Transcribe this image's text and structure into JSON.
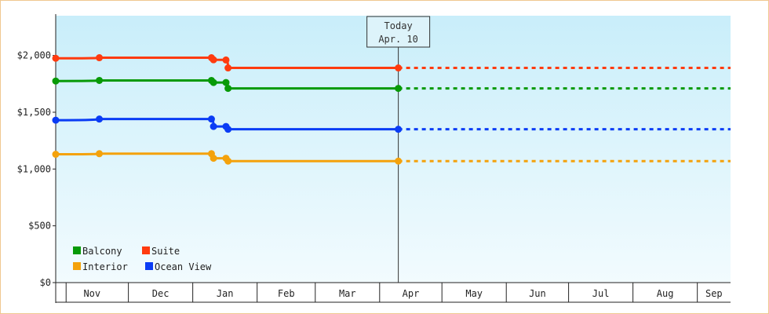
{
  "chart_data": {
    "type": "line",
    "title": "",
    "xlabel": "",
    "ylabel": "",
    "ylim": [
      0,
      2350
    ],
    "yticks": [
      {
        "value": 0,
        "label": "$0"
      },
      {
        "value": 500,
        "label": "$500"
      },
      {
        "value": 1000,
        "label": "$1,000"
      },
      {
        "value": 1500,
        "label": "$1,500"
      },
      {
        "value": 2000,
        "label": "$2,000"
      }
    ],
    "xlim": [
      "2024-10-27",
      "2025-09-17"
    ],
    "months": [
      {
        "label": "Nov",
        "start": "2024-11-01"
      },
      {
        "label": "Dec",
        "start": "2024-12-01"
      },
      {
        "label": "Jan",
        "start": "2025-01-01"
      },
      {
        "label": "Feb",
        "start": "2025-02-01"
      },
      {
        "label": "Mar",
        "start": "2025-03-01"
      },
      {
        "label": "Apr",
        "start": "2025-04-01"
      },
      {
        "label": "May",
        "start": "2025-05-01"
      },
      {
        "label": "Jun",
        "start": "2025-06-01"
      },
      {
        "label": "Jul",
        "start": "2025-07-01"
      },
      {
        "label": "Aug",
        "start": "2025-08-01"
      },
      {
        "label": "Sep",
        "start": "2025-09-01"
      }
    ],
    "today": {
      "date": "2025-04-10",
      "label_line1": "Today",
      "label_line2": "Apr. 10"
    },
    "grid": false,
    "legend_position": "bottom-left",
    "series": [
      {
        "name": "Suite",
        "color": "#ff3b0f",
        "points": [
          {
            "x": "2024-10-27",
            "y": 1975
          },
          {
            "x": "2024-11-17",
            "y": 1980
          },
          {
            "x": "2025-01-10",
            "y": 1980
          },
          {
            "x": "2025-01-11",
            "y": 1962
          },
          {
            "x": "2025-01-17",
            "y": 1960
          },
          {
            "x": "2025-01-18",
            "y": 1890
          },
          {
            "x": "2025-04-10",
            "y": 1890
          }
        ]
      },
      {
        "name": "Balcony",
        "color": "#079a07",
        "points": [
          {
            "x": "2024-10-27",
            "y": 1775
          },
          {
            "x": "2024-11-17",
            "y": 1780
          },
          {
            "x": "2025-01-10",
            "y": 1780
          },
          {
            "x": "2025-01-11",
            "y": 1762
          },
          {
            "x": "2025-01-17",
            "y": 1762
          },
          {
            "x": "2025-01-18",
            "y": 1710
          },
          {
            "x": "2025-04-10",
            "y": 1710
          }
        ]
      },
      {
        "name": "Ocean View",
        "color": "#0a3cf5",
        "points": [
          {
            "x": "2024-10-27",
            "y": 1430
          },
          {
            "x": "2024-11-17",
            "y": 1440
          },
          {
            "x": "2025-01-10",
            "y": 1440
          },
          {
            "x": "2025-01-11",
            "y": 1375
          },
          {
            "x": "2025-01-17",
            "y": 1375
          },
          {
            "x": "2025-01-18",
            "y": 1350
          },
          {
            "x": "2025-04-10",
            "y": 1350
          }
        ]
      },
      {
        "name": "Interior",
        "color": "#f4a20c",
        "points": [
          {
            "x": "2024-10-27",
            "y": 1130
          },
          {
            "x": "2024-11-17",
            "y": 1135
          },
          {
            "x": "2025-01-10",
            "y": 1135
          },
          {
            "x": "2025-01-11",
            "y": 1095
          },
          {
            "x": "2025-01-17",
            "y": 1095
          },
          {
            "x": "2025-01-18",
            "y": 1070
          },
          {
            "x": "2025-04-10",
            "y": 1070
          }
        ]
      }
    ],
    "legend": [
      {
        "series": "Balcony",
        "color": "#079a07"
      },
      {
        "series": "Suite",
        "color": "#ff3b0f"
      },
      {
        "series": "Interior",
        "color": "#f4a20c"
      },
      {
        "series": "Ocean View",
        "color": "#0a3cf5"
      }
    ],
    "colors": {
      "plot_bg_top": "#c9eefa",
      "plot_bg_bottom": "#f2fbfe",
      "frame_border": "#f0c890",
      "axis": "#222222"
    }
  }
}
